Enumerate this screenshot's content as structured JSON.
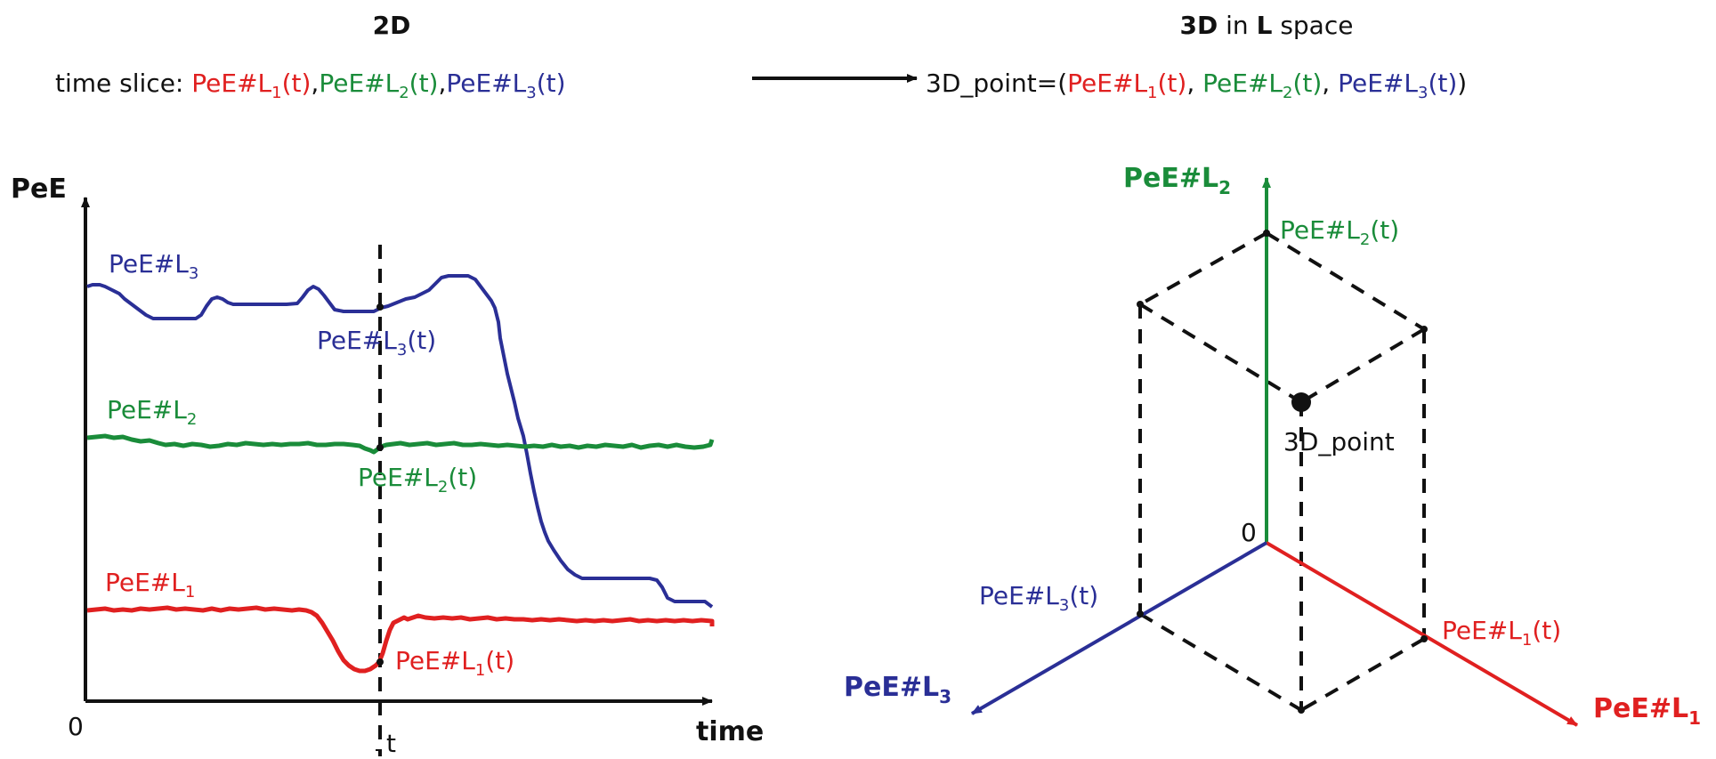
{
  "colors": {
    "L1": "#e02020",
    "L2": "#1a8c3a",
    "L3": "#2a2f96",
    "ink": "#111111"
  },
  "header": {
    "left_title": "2D",
    "right_title_bold": "3D",
    "right_title_mid": " in ",
    "right_title_bold2": "L",
    "right_title_rest": " space",
    "time_slice_prefix": "time slice: ",
    "point_prefix": "3D_point=(",
    "point_suffix": ")"
  },
  "labels": {
    "pe": "PeE#L",
    "t_suffix": "(t)",
    "sub1": "1",
    "sub2": "2",
    "sub3": "3",
    "comma": ",",
    "comma_space": ", "
  },
  "plot2d": {
    "y_axis_label": "PeE",
    "x_axis_label": "time",
    "origin_label": "0",
    "t_label": "t"
  },
  "plot3d": {
    "origin_label": "0",
    "point_label": "3D_point"
  }
}
